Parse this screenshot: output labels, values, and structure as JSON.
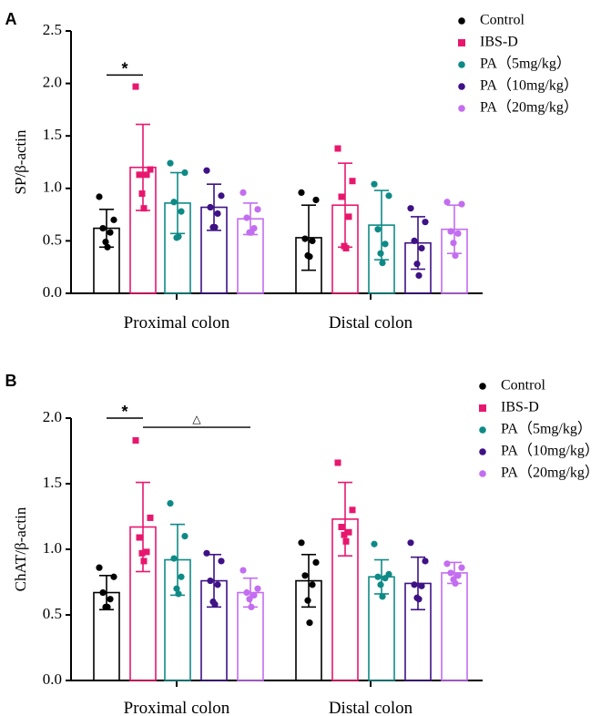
{
  "colors": {
    "Control": "#000000",
    "IBS-D": "#e8176e",
    "PA5": "#0e8a86",
    "PA10": "#3e1285",
    "PA20": "#c36df0"
  },
  "chart_data": [
    {
      "type": "bar",
      "panel_label": "A",
      "ylabel": "SP/β-actin",
      "ylim": [
        0,
        2.5
      ],
      "yticks": [
        "0.0",
        "0.5",
        "1.0",
        "1.5",
        "2.0",
        "2.5"
      ],
      "categories": [
        "Proximal colon",
        "Distal colon"
      ],
      "legend": [
        "Control",
        "IBS-D",
        "PA（5mg/kg）",
        "PA（10mg/kg）",
        "PA（20mg/kg）"
      ],
      "significance": [
        {
          "from_series": 0,
          "to_series": 1,
          "category": 0,
          "symbol": "*",
          "level": 2.08
        }
      ],
      "series": [
        {
          "name": "Control",
          "key": "Control",
          "marker": "circle",
          "values": [
            0.62,
            0.53
          ],
          "sd": [
            0.18,
            0.31
          ],
          "points": [
            [
              0.92,
              0.7,
              0.62,
              0.58,
              0.49,
              0.44
            ],
            [
              0.96,
              0.89,
              0.52,
              0.5,
              0.36,
              0.35
            ]
          ]
        },
        {
          "name": "IBS-D",
          "key": "IBS-D",
          "marker": "square",
          "values": [
            1.2,
            0.84
          ],
          "sd": [
            0.41,
            0.4
          ],
          "points": [
            [
              1.97,
              1.18,
              1.13,
              1.13,
              0.95,
              0.81
            ],
            [
              1.38,
              1.07,
              0.92,
              0.73,
              0.45,
              0.43
            ]
          ]
        },
        {
          "name": "PA（5mg/kg）",
          "key": "PA5",
          "marker": "circle",
          "values": [
            0.86,
            0.65
          ],
          "sd": [
            0.29,
            0.33
          ],
          "points": [
            [
              1.24,
              1.15,
              0.87,
              0.78,
              0.53,
              0.54
            ],
            [
              1.04,
              0.93,
              0.61,
              0.47,
              0.38,
              0.29
            ]
          ]
        },
        {
          "name": "PA（10mg/kg）",
          "key": "PA10",
          "marker": "circle",
          "values": [
            0.82,
            0.48
          ],
          "sd": [
            0.22,
            0.25
          ],
          "points": [
            [
              1.17,
              0.93,
              0.82,
              0.76,
              0.63,
              0.63
            ],
            [
              0.81,
              0.68,
              0.5,
              0.43,
              0.28,
              0.17
            ]
          ]
        },
        {
          "name": "PA（20mg/kg）",
          "key": "PA20",
          "marker": "circle",
          "values": [
            0.71,
            0.61
          ],
          "sd": [
            0.15,
            0.23
          ],
          "points": [
            [
              0.96,
              0.8,
              0.72,
              0.62,
              0.58,
              0.58
            ],
            [
              0.87,
              0.85,
              0.59,
              0.57,
              0.48,
              0.36
            ]
          ]
        }
      ]
    },
    {
      "type": "bar",
      "panel_label": "B",
      "ylabel": "ChAT/β-actin",
      "ylim": [
        0,
        2.0
      ],
      "yticks": [
        "0.0",
        "0.5",
        "1.0",
        "1.5",
        "2.0"
      ],
      "categories": [
        "Proximal colon",
        "Distal colon"
      ],
      "legend": [
        "Control",
        "IBS-D",
        "PA（5mg/kg）",
        "PA（10mg/kg）",
        "PA（20mg/kg）"
      ],
      "significance": [
        {
          "from_series": 0,
          "to_series": 1,
          "category": 0,
          "symbol": "*",
          "level": 2.0
        },
        {
          "from_series": 1,
          "to_series": 4,
          "category": 0,
          "symbol": "△",
          "level": 1.93
        }
      ],
      "series": [
        {
          "name": "Control",
          "key": "Control",
          "marker": "circle",
          "values": [
            0.67,
            0.76
          ],
          "sd": [
            0.13,
            0.2
          ],
          "points": [
            [
              0.86,
              0.79,
              0.67,
              0.62,
              0.56,
              0.56
            ],
            [
              1.05,
              0.9,
              0.8,
              0.73,
              0.61,
              0.44
            ]
          ]
        },
        {
          "name": "IBS-D",
          "key": "IBS-D",
          "marker": "square",
          "values": [
            1.17,
            1.23
          ],
          "sd": [
            0.34,
            0.28
          ],
          "points": [
            [
              1.83,
              1.24,
              1.09,
              0.98,
              0.97,
              0.91
            ],
            [
              1.66,
              1.3,
              1.17,
              1.13,
              1.11,
              1.06
            ]
          ]
        },
        {
          "name": "PA（5mg/kg）",
          "key": "PA5",
          "marker": "circle",
          "values": [
            0.92,
            0.79
          ],
          "sd": [
            0.27,
            0.13
          ],
          "points": [
            [
              1.35,
              1.1,
              0.93,
              0.79,
              0.7,
              0.66
            ],
            [
              1.04,
              0.81,
              0.79,
              0.78,
              0.73,
              0.64
            ]
          ]
        },
        {
          "name": "PA（10mg/kg）",
          "key": "PA10",
          "marker": "circle",
          "values": [
            0.76,
            0.74
          ],
          "sd": [
            0.2,
            0.2
          ],
          "points": [
            [
              0.97,
              0.91,
              0.76,
              0.73,
              0.6,
              0.58
            ],
            [
              1.05,
              0.91,
              0.73,
              0.72,
              0.63,
              0.62
            ]
          ]
        },
        {
          "name": "PA（20mg/kg）",
          "key": "PA20",
          "marker": "circle",
          "values": [
            0.67,
            0.82
          ],
          "sd": [
            0.11,
            0.08
          ],
          "points": [
            [
              0.84,
              0.7,
              0.67,
              0.65,
              0.62,
              0.56
            ],
            [
              0.89,
              0.86,
              0.82,
              0.8,
              0.77,
              0.74
            ]
          ]
        }
      ]
    }
  ]
}
